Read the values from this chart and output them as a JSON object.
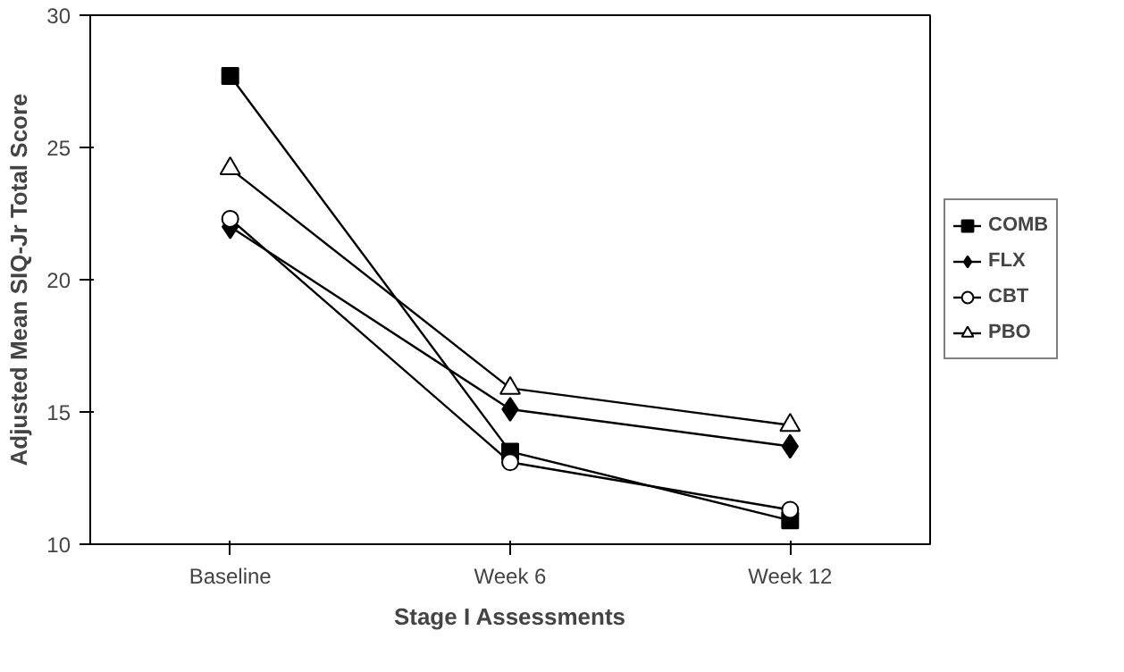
{
  "chart_data": {
    "type": "line",
    "xlabel": "Stage I Assessments",
    "ylabel": "Adjusted Mean SIQ-Jr Total Score",
    "categories": [
      "Baseline",
      "Week 6",
      "Week 12"
    ],
    "series": [
      {
        "name": "COMB",
        "color": "#000000",
        "marker": "square",
        "values": [
          27.7,
          13.5,
          10.9
        ]
      },
      {
        "name": "FLX",
        "color": "#000000",
        "marker": "diamond",
        "values": [
          22.0,
          15.1,
          13.7
        ]
      },
      {
        "name": "CBT",
        "color": "#000000",
        "marker": "circle",
        "values": [
          22.3,
          13.1,
          11.3
        ]
      },
      {
        "name": "PBO",
        "color": "#000000",
        "marker": "triangle",
        "values": [
          24.2,
          15.9,
          14.5
        ]
      }
    ],
    "ylim": [
      10,
      30
    ],
    "yticks": [
      10,
      15,
      20,
      25,
      30
    ],
    "grid": false,
    "legend": "right",
    "line_style": "solid"
  }
}
